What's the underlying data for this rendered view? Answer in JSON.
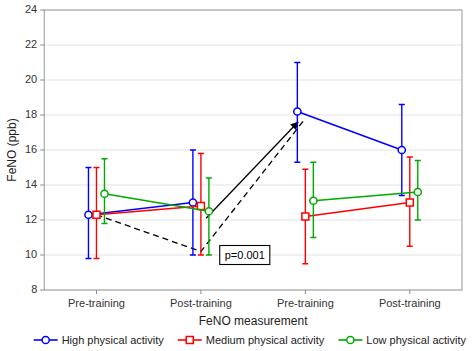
{
  "chart_data": {
    "type": "line",
    "x_label": "FeNO measurement",
    "y_label": "FeNO (ppb)",
    "categories": [
      "Pre-training",
      "Post-training",
      "Pre-training",
      "Post-training"
    ],
    "ylim": [
      8,
      24
    ],
    "yticks": [
      8,
      10,
      12,
      14,
      16,
      18,
      20,
      22,
      24
    ],
    "grid": true,
    "legend": "lower right",
    "series": [
      {
        "name": "High physical activity",
        "color": "#0000ff",
        "marker": "circle",
        "values": [
          12.3,
          13.0,
          18.2,
          16.0
        ],
        "yerr_low": [
          2.5,
          3.0,
          2.9,
          2.6
        ],
        "yerr_high": [
          2.7,
          3.0,
          2.8,
          2.6
        ]
      },
      {
        "name": "Medium physical activity",
        "color": "#ff0000",
        "marker": "square",
        "values": [
          12.3,
          12.8,
          12.2,
          13.0
        ],
        "yerr_low": [
          2.5,
          2.8,
          2.7,
          2.5
        ],
        "yerr_high": [
          2.7,
          3.0,
          2.7,
          2.6
        ]
      },
      {
        "name": "Low physical activity",
        "color": "#00aa00",
        "marker": "circle",
        "values": [
          13.5,
          12.5,
          13.1,
          13.6
        ],
        "yerr_low": [
          1.7,
          2.5,
          2.1,
          1.6
        ],
        "yerr_high": [
          2.0,
          1.9,
          2.2,
          1.8
        ]
      }
    ],
    "annotations": [
      {
        "type": "line",
        "line_style": "dashed",
        "color": "black",
        "x": [
          1,
          2,
          3
        ],
        "y": [
          12.3,
          10.2,
          17.8
        ]
      },
      {
        "type": "arrow",
        "color": "black",
        "x": [
          2.05,
          2.93
        ],
        "y": [
          12.1,
          17.6
        ]
      },
      {
        "type": "text",
        "text": "p=0.001",
        "x": 2.42,
        "y": 10.0
      }
    ]
  }
}
